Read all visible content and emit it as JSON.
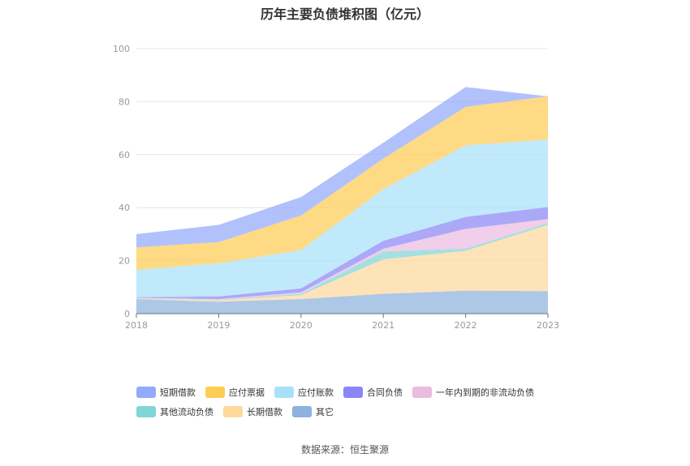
{
  "chart_data": {
    "type": "area",
    "stacked": true,
    "title": "历年主要负债堆积图（亿元）",
    "x": [
      "2018",
      "2019",
      "2020",
      "2021",
      "2022",
      "2023"
    ],
    "ylim": [
      0,
      100
    ],
    "yticks": [
      0,
      20,
      40,
      60,
      80,
      100
    ],
    "grid": true,
    "legend_position": "bottom",
    "series": [
      {
        "name": "其它",
        "color": "#8eb1de",
        "values": [
          5.5,
          4.5,
          5.5,
          7.5,
          8.7,
          8.5
        ]
      },
      {
        "name": "长期借款",
        "color": "#ffd89c",
        "values": [
          0.2,
          0.5,
          1.5,
          13.0,
          15.0,
          25.0
        ]
      },
      {
        "name": "其他流动负债",
        "color": "#7fd6d6",
        "values": [
          0.1,
          0.2,
          0.5,
          3.0,
          0.8,
          0.7
        ]
      },
      {
        "name": "一年内到期的非流动负债",
        "color": "#ebbbe0",
        "values": [
          0.2,
          0.3,
          0.5,
          1.0,
          7.5,
          1.5
        ]
      },
      {
        "name": "合同负债",
        "color": "#8a86f5",
        "values": [
          0.2,
          1.0,
          1.5,
          3.0,
          4.5,
          4.5
        ]
      },
      {
        "name": "应付账款",
        "color": "#a8e0fb",
        "values": [
          10.3,
          12.5,
          14.5,
          19.5,
          27.0,
          25.5
        ]
      },
      {
        "name": "应付票据",
        "color": "#ffcc55",
        "values": [
          8.5,
          8.0,
          13.0,
          11.5,
          14.5,
          16.3
        ]
      },
      {
        "name": "短期借款",
        "color": "#93a9fb",
        "values": [
          5.0,
          6.5,
          7.0,
          6.0,
          7.5,
          0.0
        ]
      }
    ]
  },
  "legend": [
    [
      "短期借款",
      "应付票据",
      "应付账款",
      "合同负债",
      "一年内到期的非流动负债"
    ],
    [
      "其他流动负债",
      "长期借款",
      "其它"
    ]
  ],
  "source": "数据来源：恒生聚源"
}
